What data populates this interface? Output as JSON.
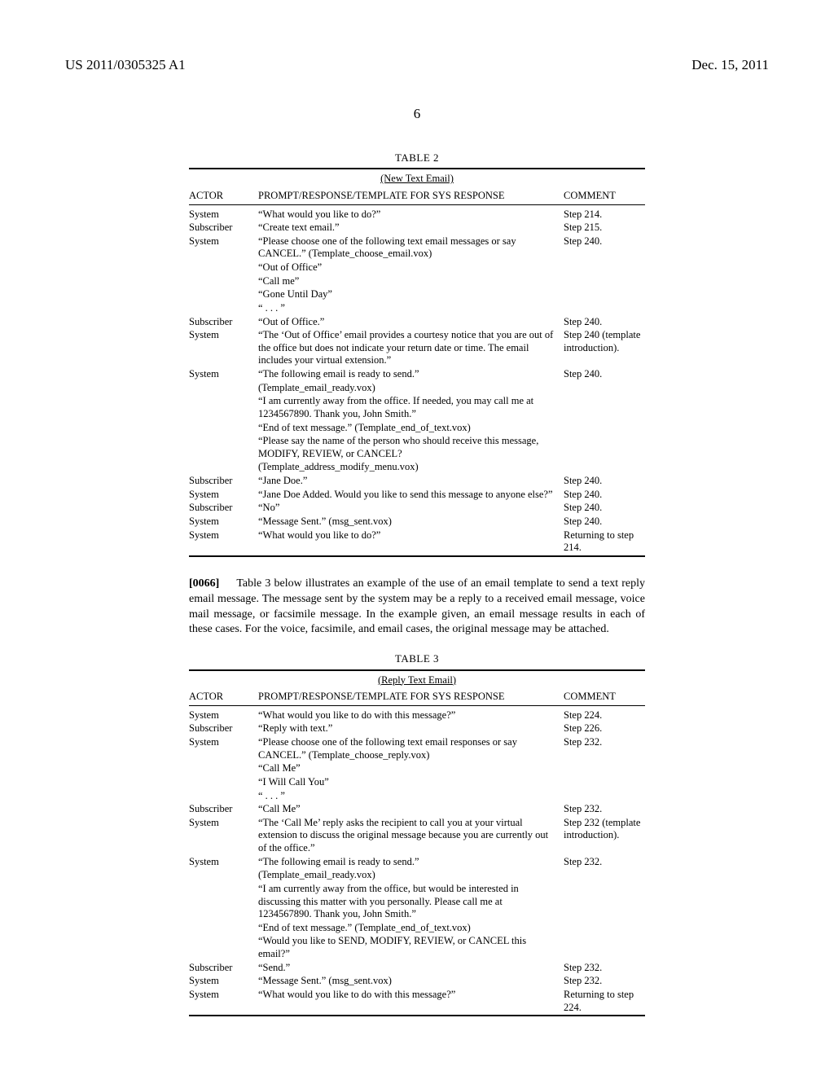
{
  "header": {
    "left": "US 2011/0305325 A1",
    "right": "Dec. 15, 2011"
  },
  "page_number": "6",
  "table2": {
    "label": "TABLE 2",
    "title": "(New Text Email)",
    "columns": {
      "c1": "ACTOR",
      "c2": "PROMPT/RESPONSE/TEMPLATE FOR SYS RESPONSE",
      "c3": "COMMENT"
    },
    "rows": [
      {
        "actor": "System",
        "prompt": "“What would you like to do?”",
        "comment": "Step 214."
      },
      {
        "actor": "Subscriber",
        "prompt": "“Create text email.”",
        "comment": "Step 215."
      },
      {
        "actor": "System",
        "prompt": "“Please choose one of the following text email messages or say CANCEL.” (Template_choose_email.vox)",
        "comment": "Step 240."
      },
      {
        "actor": "",
        "prompt": "“Out of Office”",
        "comment": ""
      },
      {
        "actor": "",
        "prompt": "“Call me”",
        "comment": ""
      },
      {
        "actor": "",
        "prompt": "“Gone Until Day”",
        "comment": ""
      },
      {
        "actor": "",
        "prompt": "“ . . . ”",
        "comment": ""
      },
      {
        "actor": "Subscriber",
        "prompt": "“Out of Office.”",
        "comment": "Step 240."
      },
      {
        "actor": "System",
        "prompt": "“The ‘Out of Office’ email provides a courtesy notice that you are out of the office but does not indicate your return date or time. The email includes your virtual extension.”",
        "comment": "Step 240 (template introduction)."
      },
      {
        "actor": "System",
        "prompt": "“The following email is ready to send.”",
        "comment": "Step 240."
      },
      {
        "actor": "",
        "prompt": "(Template_email_ready.vox)",
        "comment": ""
      },
      {
        "actor": "",
        "prompt": "“I am currently away from the office. If needed, you may call me at 1234567890. Thank you, John Smith.”",
        "comment": ""
      },
      {
        "actor": "",
        "prompt": "“End of text message.” (Template_end_of_text.vox)",
        "comment": ""
      },
      {
        "actor": "",
        "prompt": "“Please say the name of the person who should receive this message, MODIFY, REVIEW, or CANCEL?",
        "comment": ""
      },
      {
        "actor": "",
        "prompt": "(Template_address_modify_menu.vox)",
        "comment": ""
      },
      {
        "actor": "Subscriber",
        "prompt": "“Jane Doe.”",
        "comment": "Step 240."
      },
      {
        "actor": "System",
        "prompt": "“Jane Doe Added. Would you like to send this message to anyone else?”",
        "comment": "Step 240."
      },
      {
        "actor": "Subscriber",
        "prompt": "“No”",
        "comment": "Step 240."
      },
      {
        "actor": "System",
        "prompt": "“Message Sent.” (msg_sent.vox)",
        "comment": "Step 240."
      },
      {
        "actor": "System",
        "prompt": "“What would you like to do?”",
        "comment": "Returning to step 214."
      }
    ]
  },
  "paragraph": {
    "num": "[0066]",
    "text": "Table 3 below illustrates an example of the use of an email template to send a text reply email message. The message sent by the system may be a reply to a received email message, voice mail message, or facsimile message. In the example given, an email message results in each of these cases. For the voice, facsimile, and email cases, the original message may be attached."
  },
  "table3": {
    "label": "TABLE 3",
    "title": "(Reply Text Email)",
    "columns": {
      "c1": "ACTOR",
      "c2": "PROMPT/RESPONSE/TEMPLATE FOR SYS RESPONSE",
      "c3": "COMMENT"
    },
    "rows": [
      {
        "actor": "System",
        "prompt": "“What would you like to do with this message?”",
        "comment": "Step 224."
      },
      {
        "actor": "Subscriber",
        "prompt": "“Reply with text.”",
        "comment": "Step 226."
      },
      {
        "actor": "System",
        "prompt": "“Please choose one of the following text email responses or say CANCEL.” (Template_choose_reply.vox)",
        "comment": "Step 232."
      },
      {
        "actor": "",
        "prompt": "“Call Me”",
        "comment": ""
      },
      {
        "actor": "",
        "prompt": "“I Will Call You”",
        "comment": ""
      },
      {
        "actor": "",
        "prompt": "“ . . . ”",
        "comment": ""
      },
      {
        "actor": "Subscriber",
        "prompt": "“Call Me”",
        "comment": "Step 232."
      },
      {
        "actor": "System",
        "prompt": "“The ‘Call Me’ reply asks the recipient to call you at your virtual extension to discuss the original message because you are currently out of the office.”",
        "comment": "Step 232 (template introduction)."
      },
      {
        "actor": "System",
        "prompt": "“The following email is ready to send.”",
        "comment": "Step 232."
      },
      {
        "actor": "",
        "prompt": "(Template_email_ready.vox)",
        "comment": ""
      },
      {
        "actor": "",
        "prompt": "“I am currently away from the office, but would be interested in discussing this matter with you personally. Please call me at 1234567890. Thank you, John Smith.”",
        "comment": ""
      },
      {
        "actor": "",
        "prompt": "“End of text message.” (Template_end_of_text.vox)",
        "comment": ""
      },
      {
        "actor": "",
        "prompt": "“Would you like to SEND, MODIFY, REVIEW, or CANCEL this email?”",
        "comment": ""
      },
      {
        "actor": "Subscriber",
        "prompt": "“Send.”",
        "comment": "Step 232."
      },
      {
        "actor": "System",
        "prompt": "“Message Sent.” (msg_sent.vox)",
        "comment": "Step 232."
      },
      {
        "actor": "System",
        "prompt": "“What would you like to do with this message?”",
        "comment": "Returning to step 224."
      }
    ]
  }
}
